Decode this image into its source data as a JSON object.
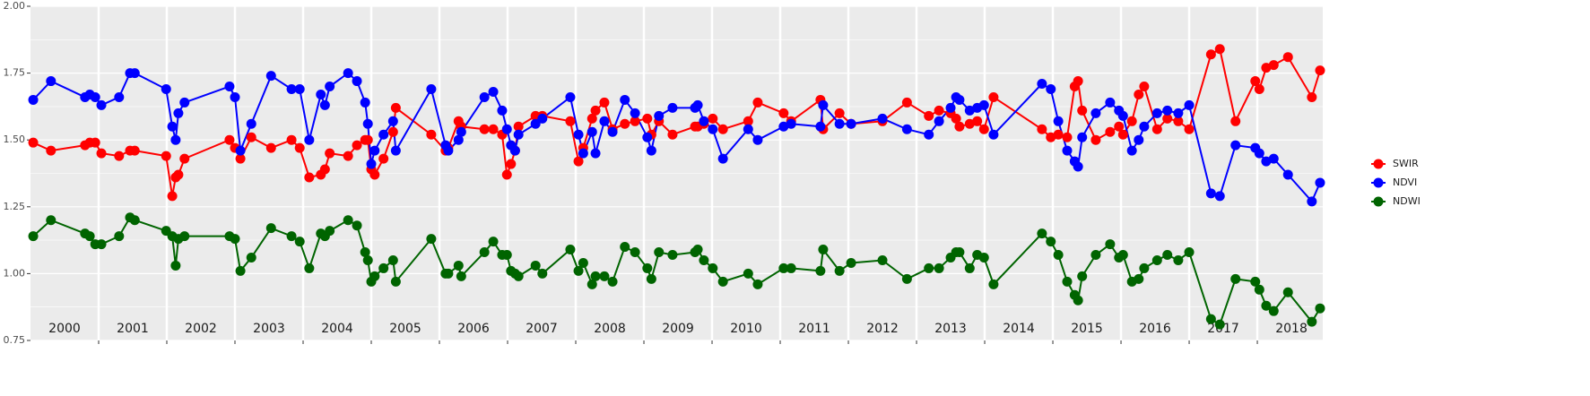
{
  "chart_data": {
    "type": "line",
    "x": [
      2000.04,
      2000.3,
      2000.8,
      2000.87,
      2000.95,
      2001.04,
      2001.3,
      2001.46,
      2001.53,
      2001.99,
      2002.08,
      2002.13,
      2002.17,
      2002.26,
      2002.92,
      2003.0,
      2003.08,
      2003.24,
      2003.53,
      2003.83,
      2003.95,
      2004.09,
      2004.26,
      2004.32,
      2004.39,
      2004.66,
      2004.79,
      2004.91,
      2004.95,
      2005.0,
      2005.05,
      2005.18,
      2005.32,
      2005.36,
      2005.88,
      2006.09,
      2006.13,
      2006.28,
      2006.32,
      2006.66,
      2006.79,
      2006.92,
      2006.99,
      2007.05,
      2007.11,
      2007.16,
      2007.41,
      2007.51,
      2007.92,
      2008.04,
      2008.11,
      2008.24,
      2008.29,
      2008.42,
      2008.54,
      2008.72,
      2008.87,
      2009.05,
      2009.11,
      2009.22,
      2009.42,
      2009.75,
      2009.79,
      2009.88,
      2010.01,
      2010.16,
      2010.53,
      2010.67,
      2011.05,
      2011.16,
      2011.59,
      2011.63,
      2011.87,
      2012.04,
      2012.5,
      2012.86,
      2013.18,
      2013.33,
      2013.5,
      2013.58,
      2013.63,
      2013.78,
      2013.89,
      2013.99,
      2014.13,
      2014.84,
      2014.97,
      2015.08,
      2015.21,
      2015.32,
      2015.37,
      2015.43,
      2015.63,
      2015.84,
      2015.97,
      2016.03,
      2016.16,
      2016.26,
      2016.34,
      2016.53,
      2016.68,
      2016.84,
      2017.0,
      2017.32,
      2017.45,
      2017.68,
      2017.97,
      2018.03,
      2018.13,
      2018.24,
      2018.45,
      2018.8,
      2018.92
    ],
    "series": [
      {
        "name": "SWIR",
        "color": "#ff0000",
        "values": [
          1.49,
          1.46,
          1.48,
          1.49,
          1.49,
          1.45,
          1.44,
          1.46,
          1.46,
          1.44,
          1.29,
          1.36,
          1.37,
          1.43,
          1.5,
          1.47,
          1.43,
          1.51,
          1.47,
          1.5,
          1.47,
          1.36,
          1.37,
          1.39,
          1.45,
          1.44,
          1.48,
          1.5,
          1.5,
          1.39,
          1.37,
          1.43,
          1.53,
          1.62,
          1.52,
          1.46,
          1.47,
          1.57,
          1.55,
          1.54,
          1.54,
          1.52,
          1.37,
          1.41,
          1.46,
          1.55,
          1.59,
          1.59,
          1.57,
          1.42,
          1.47,
          1.58,
          1.61,
          1.64,
          1.54,
          1.56,
          1.57,
          1.58,
          1.52,
          1.57,
          1.52,
          1.55,
          1.55,
          1.56,
          1.58,
          1.54,
          1.57,
          1.64,
          1.6,
          1.57,
          1.65,
          1.54,
          1.6,
          1.56,
          1.57,
          1.64,
          1.59,
          1.61,
          1.6,
          1.58,
          1.55,
          1.56,
          1.57,
          1.54,
          1.66,
          1.54,
          1.51,
          1.52,
          1.51,
          1.7,
          1.72,
          1.61,
          1.5,
          1.53,
          1.55,
          1.52,
          1.57,
          1.67,
          1.7,
          1.54,
          1.58,
          1.57,
          1.54,
          1.82,
          1.84,
          1.57,
          1.72,
          1.69,
          1.77,
          1.78,
          1.81,
          1.66,
          1.76
        ]
      },
      {
        "name": "NDVI",
        "color": "#0000ff",
        "values": [
          1.65,
          1.72,
          1.66,
          1.67,
          1.66,
          1.63,
          1.66,
          1.75,
          1.75,
          1.69,
          1.55,
          1.5,
          1.6,
          1.64,
          1.7,
          1.66,
          1.46,
          1.56,
          1.74,
          1.69,
          1.69,
          1.5,
          1.67,
          1.63,
          1.7,
          1.75,
          1.72,
          1.64,
          1.56,
          1.41,
          1.46,
          1.52,
          1.57,
          1.46,
          1.69,
          1.48,
          1.46,
          1.5,
          1.53,
          1.66,
          1.68,
          1.61,
          1.54,
          1.48,
          1.46,
          1.52,
          1.56,
          1.58,
          1.66,
          1.52,
          1.45,
          1.53,
          1.45,
          1.57,
          1.53,
          1.65,
          1.6,
          1.51,
          1.46,
          1.59,
          1.62,
          1.62,
          1.63,
          1.57,
          1.54,
          1.43,
          1.54,
          1.5,
          1.55,
          1.56,
          1.55,
          1.63,
          1.56,
          1.56,
          1.58,
          1.54,
          1.52,
          1.57,
          1.62,
          1.66,
          1.65,
          1.61,
          1.62,
          1.63,
          1.52,
          1.71,
          1.69,
          1.57,
          1.46,
          1.42,
          1.4,
          1.51,
          1.6,
          1.64,
          1.61,
          1.59,
          1.46,
          1.5,
          1.55,
          1.6,
          1.61,
          1.6,
          1.63,
          1.3,
          1.29,
          1.48,
          1.47,
          1.45,
          1.42,
          1.43,
          1.37,
          1.27,
          1.34
        ]
      },
      {
        "name": "NDWI",
        "color": "#006400",
        "values": [
          1.14,
          1.2,
          1.15,
          1.14,
          1.11,
          1.11,
          1.14,
          1.21,
          1.2,
          1.16,
          1.14,
          1.03,
          1.13,
          1.14,
          1.14,
          1.13,
          1.01,
          1.06,
          1.17,
          1.14,
          1.12,
          1.02,
          1.15,
          1.14,
          1.16,
          1.2,
          1.18,
          1.08,
          1.05,
          0.97,
          0.99,
          1.02,
          1.05,
          0.97,
          1.13,
          1.0,
          1.0,
          1.03,
          0.99,
          1.08,
          1.12,
          1.07,
          1.07,
          1.01,
          1.0,
          0.99,
          1.03,
          1.0,
          1.09,
          1.01,
          1.04,
          0.96,
          0.99,
          0.99,
          0.97,
          1.1,
          1.08,
          1.02,
          0.98,
          1.08,
          1.07,
          1.08,
          1.09,
          1.05,
          1.02,
          0.97,
          1.0,
          0.96,
          1.02,
          1.02,
          1.01,
          1.09,
          1.01,
          1.04,
          1.05,
          0.98,
          1.02,
          1.02,
          1.06,
          1.08,
          1.08,
          1.02,
          1.07,
          1.06,
          0.96,
          1.15,
          1.12,
          1.07,
          0.97,
          0.92,
          0.9,
          0.99,
          1.07,
          1.11,
          1.06,
          1.07,
          0.97,
          0.98,
          1.02,
          1.05,
          1.07,
          1.05,
          1.08,
          0.83,
          0.81,
          0.98,
          0.97,
          0.94,
          0.88,
          0.86,
          0.93,
          0.82,
          0.87
        ]
      }
    ],
    "xlim": [
      2000,
      2018.96
    ],
    "xticks": [
      {
        "value": 2000.5,
        "label": "2000"
      },
      {
        "value": 2001.5,
        "label": "2001"
      },
      {
        "value": 2002.5,
        "label": "2002"
      },
      {
        "value": 2003.5,
        "label": "2003"
      },
      {
        "value": 2004.5,
        "label": "2004"
      },
      {
        "value": 2005.5,
        "label": "2005"
      },
      {
        "value": 2006.5,
        "label": "2006"
      },
      {
        "value": 2007.5,
        "label": "2007"
      },
      {
        "value": 2008.5,
        "label": "2008"
      },
      {
        "value": 2009.5,
        "label": "2009"
      },
      {
        "value": 2010.5,
        "label": "2010"
      },
      {
        "value": 2011.5,
        "label": "2011"
      },
      {
        "value": 2012.5,
        "label": "2012"
      },
      {
        "value": 2013.5,
        "label": "2013"
      },
      {
        "value": 2014.5,
        "label": "2014"
      },
      {
        "value": 2015.5,
        "label": "2015"
      },
      {
        "value": 2016.5,
        "label": "2016"
      },
      {
        "value": 2017.5,
        "label": "2017"
      },
      {
        "value": 2018.5,
        "label": "2018"
      }
    ],
    "xgrid": [
      2001,
      2002,
      2003,
      2004,
      2005,
      2006,
      2007,
      2008,
      2009,
      2010,
      2011,
      2012,
      2013,
      2014,
      2015,
      2016,
      2017,
      2018
    ],
    "ylim": [
      0.75,
      2.0
    ],
    "yticks": [
      {
        "value": 0.75,
        "label": "0.75"
      },
      {
        "value": 1.0,
        "label": "1.00"
      },
      {
        "value": 1.25,
        "label": "1.25"
      },
      {
        "value": 1.5,
        "label": "1.50"
      },
      {
        "value": 1.75,
        "label": "1.75"
      },
      {
        "value": 2.0,
        "label": "2.00"
      }
    ],
    "yminor": [
      0.875,
      1.125,
      1.375,
      1.625,
      1.875
    ],
    "grid": true,
    "legend": "right"
  }
}
